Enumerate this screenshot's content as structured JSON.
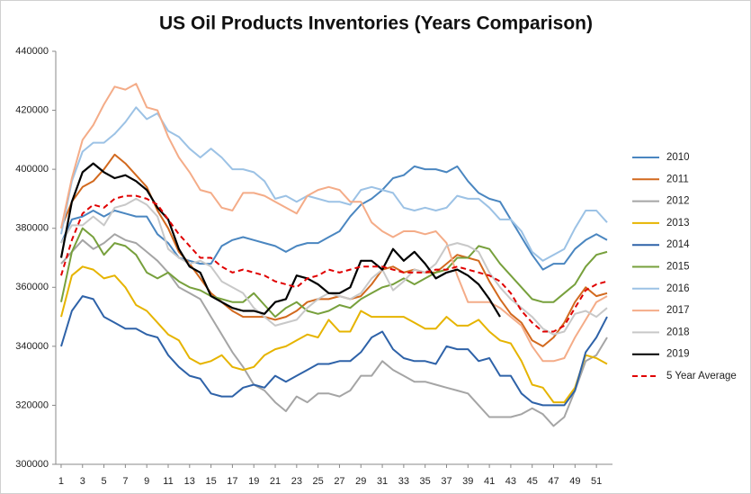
{
  "chart_data": {
    "type": "line",
    "title": "US Oil Products Inventories (Years Comparison)",
    "x": [
      1,
      2,
      3,
      4,
      5,
      6,
      7,
      8,
      9,
      10,
      11,
      12,
      13,
      14,
      15,
      16,
      17,
      18,
      19,
      20,
      21,
      22,
      23,
      24,
      25,
      26,
      27,
      28,
      29,
      30,
      31,
      32,
      33,
      34,
      35,
      36,
      37,
      38,
      39,
      40,
      41,
      42,
      43,
      44,
      45,
      46,
      47,
      48,
      49,
      50,
      51,
      52
    ],
    "xlim": [
      0.5,
      52.5
    ],
    "xticks": [
      1,
      3,
      5,
      7,
      9,
      11,
      13,
      15,
      17,
      19,
      21,
      23,
      25,
      27,
      29,
      31,
      33,
      35,
      37,
      39,
      41,
      43,
      45,
      47,
      49,
      51
    ],
    "ylim": [
      300000,
      440000
    ],
    "yticks": [
      300000,
      320000,
      340000,
      360000,
      380000,
      400000,
      420000,
      440000
    ],
    "grid": false,
    "legend": "right",
    "series": [
      {
        "name": "2010",
        "color": "#4a86c0",
        "values": [
          375000,
          383000,
          384000,
          386000,
          384000,
          386000,
          385000,
          384000,
          384000,
          378000,
          375000,
          370000,
          369000,
          368000,
          368000,
          374000,
          376000,
          377000,
          376000,
          375000,
          374000,
          372000,
          374000,
          375000,
          375000,
          377000,
          379000,
          384000,
          388000,
          390000,
          393000,
          397000,
          398000,
          401000,
          400000,
          400000,
          399000,
          401000,
          396000,
          392000,
          390000,
          389000,
          383000,
          377000,
          371000,
          366000,
          368000,
          368000,
          373000,
          376000,
          378000,
          376000
        ]
      },
      {
        "name": "2011",
        "color": "#d2691e",
        "values": [
          380000,
          389000,
          394000,
          396000,
          400000,
          405000,
          402000,
          398000,
          394000,
          386000,
          380000,
          372000,
          368000,
          363000,
          358000,
          355000,
          352000,
          350000,
          350000,
          350000,
          349000,
          350000,
          352000,
          355000,
          356000,
          356000,
          357000,
          356000,
          357000,
          361000,
          366000,
          367000,
          365000,
          366000,
          365000,
          365000,
          368000,
          371000,
          370000,
          369000,
          362000,
          356000,
          351000,
          348000,
          342000,
          340000,
          343000,
          348000,
          355000,
          360000,
          357000,
          358000
        ]
      },
      {
        "name": "2012",
        "color": "#a5a5a5",
        "values": [
          368000,
          372000,
          376000,
          373000,
          375000,
          378000,
          376000,
          375000,
          372000,
          369000,
          365000,
          360000,
          358000,
          356000,
          350000,
          344000,
          338000,
          333000,
          327000,
          325000,
          321000,
          318000,
          323000,
          321000,
          324000,
          324000,
          323000,
          325000,
          330000,
          330000,
          335000,
          332000,
          330000,
          328000,
          328000,
          327000,
          326000,
          325000,
          324000,
          320000,
          316000,
          316000,
          316000,
          317000,
          319000,
          317000,
          313000,
          316000,
          325000,
          335000,
          337000,
          343000
        ]
      },
      {
        "name": "2013",
        "color": "#e6b400",
        "values": [
          350000,
          364000,
          367000,
          366000,
          363000,
          364000,
          360000,
          354000,
          352000,
          348000,
          344000,
          342000,
          336000,
          334000,
          335000,
          337000,
          333000,
          332000,
          333000,
          337000,
          339000,
          340000,
          342000,
          344000,
          343000,
          349000,
          345000,
          345000,
          352000,
          350000,
          350000,
          350000,
          350000,
          348000,
          346000,
          346000,
          350000,
          347000,
          347000,
          349000,
          345000,
          342000,
          341000,
          335000,
          327000,
          326000,
          321000,
          321000,
          326000,
          337000,
          336000,
          334000
        ]
      },
      {
        "name": "2014",
        "color": "#2e62a8",
        "values": [
          340000,
          352000,
          357000,
          356000,
          350000,
          348000,
          346000,
          346000,
          344000,
          343000,
          337000,
          333000,
          330000,
          329000,
          324000,
          323000,
          323000,
          326000,
          327000,
          326000,
          330000,
          328000,
          330000,
          332000,
          334000,
          334000,
          335000,
          335000,
          338000,
          343000,
          345000,
          339000,
          336000,
          335000,
          335000,
          334000,
          340000,
          339000,
          339000,
          335000,
          336000,
          330000,
          330000,
          324000,
          321000,
          320000,
          320000,
          320000,
          325000,
          338000,
          343000,
          350000
        ]
      },
      {
        "name": "2015",
        "color": "#77a03c",
        "values": [
          355000,
          372000,
          380000,
          377000,
          371000,
          375000,
          374000,
          371000,
          365000,
          363000,
          365000,
          362000,
          360000,
          359000,
          357000,
          356000,
          355000,
          355000,
          358000,
          354000,
          350000,
          353000,
          355000,
          352000,
          351000,
          352000,
          354000,
          353000,
          356000,
          358000,
          360000,
          361000,
          363000,
          361000,
          363000,
          365000,
          366000,
          370000,
          370000,
          374000,
          373000,
          368000,
          364000,
          360000,
          356000,
          355000,
          355000,
          358000,
          361000,
          367000,
          371000,
          372000
        ]
      },
      {
        "name": "2016",
        "color": "#9cc2e5",
        "values": [
          378000,
          396000,
          406000,
          409000,
          409000,
          412000,
          416000,
          421000,
          417000,
          419000,
          413000,
          411000,
          407000,
          404000,
          407000,
          404000,
          400000,
          400000,
          399000,
          396000,
          390000,
          391000,
          389000,
          391000,
          390000,
          389000,
          389000,
          388000,
          393000,
          394000,
          393000,
          392000,
          387000,
          386000,
          387000,
          386000,
          387000,
          391000,
          390000,
          390000,
          387000,
          383000,
          383000,
          379000,
          372000,
          369000,
          371000,
          373000,
          380000,
          386000,
          386000,
          382000
        ]
      },
      {
        "name": "2017",
        "color": "#f4ac88",
        "values": [
          380000,
          397000,
          410000,
          415000,
          422000,
          428000,
          427000,
          429000,
          421000,
          420000,
          411000,
          404000,
          399000,
          393000,
          392000,
          387000,
          386000,
          392000,
          392000,
          391000,
          389000,
          387000,
          385000,
          391000,
          393000,
          394000,
          393000,
          389000,
          389000,
          382000,
          379000,
          377000,
          379000,
          379000,
          378000,
          379000,
          375000,
          364000,
          355000,
          355000,
          355000,
          353000,
          350000,
          347000,
          340000,
          335000,
          335000,
          336000,
          343000,
          349000,
          355000,
          357000
        ]
      },
      {
        "name": "2018",
        "color": "#c8c8c8",
        "values": [
          375000,
          381000,
          381000,
          384000,
          381000,
          387000,
          388000,
          390000,
          388000,
          384000,
          373000,
          370000,
          368000,
          369000,
          367000,
          362000,
          360000,
          358000,
          353000,
          350000,
          347000,
          348000,
          349000,
          353000,
          356000,
          358000,
          357000,
          356000,
          358000,
          363000,
          366000,
          359000,
          362000,
          366000,
          365000,
          368000,
          374000,
          375000,
          374000,
          372000,
          365000,
          360000,
          356000,
          353000,
          350000,
          346000,
          344000,
          345000,
          351000,
          352000,
          350000,
          353000
        ]
      },
      {
        "name": "2019",
        "color": "#000000",
        "values": [
          370000,
          389000,
          399000,
          402000,
          399000,
          397000,
          398000,
          396000,
          393000,
          387000,
          383000,
          373000,
          367000,
          365000,
          357000,
          355000,
          353000,
          352000,
          352000,
          351000,
          355000,
          356000,
          364000,
          363000,
          361000,
          358000,
          358000,
          360000,
          369000,
          369000,
          366000,
          373000,
          369000,
          372000,
          368000,
          363000,
          365000,
          366000,
          364000,
          361000,
          356000,
          350000,
          null,
          null,
          null,
          null,
          null,
          null,
          null,
          null,
          null,
          null
        ]
      },
      {
        "name": "5 Year Average",
        "color": "#e00000",
        "line_style": "dashed",
        "values": [
          364000,
          376000,
          385000,
          388000,
          387000,
          390000,
          391000,
          391000,
          390000,
          388000,
          383000,
          378000,
          374000,
          370000,
          370000,
          367000,
          365000,
          366000,
          365000,
          364000,
          362000,
          361000,
          360000,
          363000,
          364000,
          366000,
          365000,
          366000,
          367000,
          367000,
          367000,
          366000,
          365000,
          365000,
          365000,
          366000,
          366000,
          367000,
          366000,
          365000,
          364000,
          362000,
          358000,
          352000,
          348000,
          345000,
          345000,
          347000,
          353000,
          359000,
          361000,
          362000
        ]
      }
    ]
  }
}
